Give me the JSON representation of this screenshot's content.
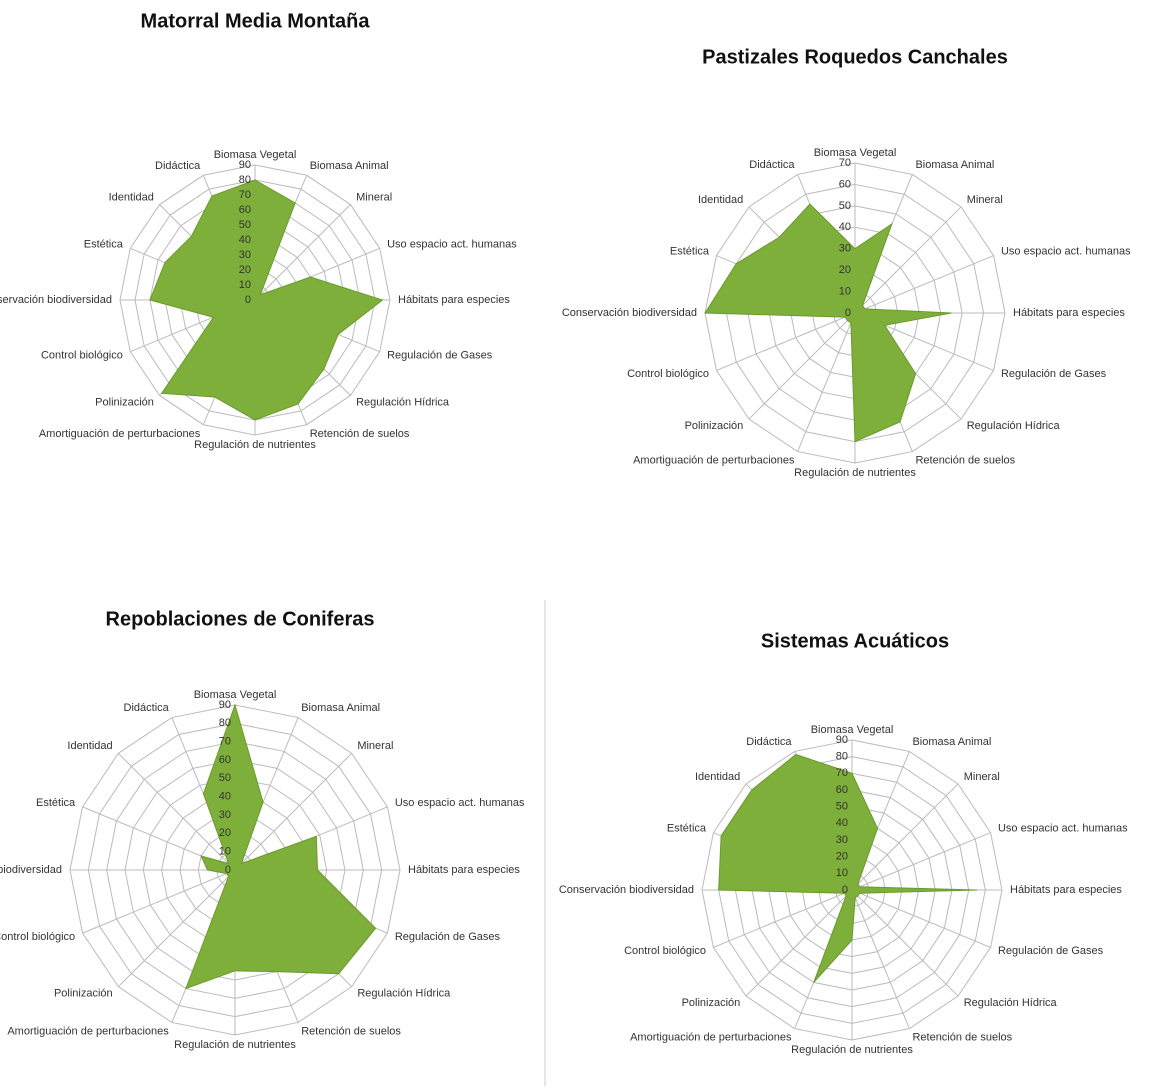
{
  "chart_data": [
    {
      "type": "radar",
      "title": "Matorral Media Montaña",
      "categories": [
        "Biomasa Vegetal",
        "Biomasa Animal",
        "Mineral",
        "Uso espacio act. humanas",
        "Hábitats para especies",
        "Regulación de Gases",
        "Regulación Hídrica",
        "Retención de suelos",
        "Regulación de nutrientes",
        "Amortiguación de perturbaciones",
        "Polinización",
        "Control biológico",
        "Conservación biodiversidad",
        "Estética",
        "Identidad",
        "Didáctica"
      ],
      "values": [
        80,
        70,
        5,
        40,
        85,
        60,
        65,
        75,
        80,
        70,
        88,
        30,
        70,
        65,
        60,
        75
      ],
      "color": "#7faf3b",
      "ylim": [
        0,
        90
      ],
      "yticks": [
        0,
        10,
        20,
        30,
        40,
        50,
        60,
        70,
        80,
        90
      ],
      "grid": true
    },
    {
      "type": "radar",
      "title": "Pastizales Roquedos Canchales",
      "categories": [
        "Biomasa Vegetal",
        "Biomasa Animal",
        "Mineral",
        "Uso espacio act. humanas",
        "Hábitats para especies",
        "Regulación de Gases",
        "Regulación Hídrica",
        "Retención de suelos",
        "Regulación de nutrientes",
        "Amortiguación de perturbaciones",
        "Polinización",
        "Control biológico",
        "Conservación biodiversidad",
        "Estética",
        "Identidad",
        "Didáctica"
      ],
      "values": [
        30,
        45,
        5,
        5,
        45,
        15,
        40,
        55,
        60,
        5,
        5,
        5,
        70,
        60,
        50,
        55
      ],
      "color": "#7faf3b",
      "ylim": [
        0,
        70
      ],
      "yticks": [
        0,
        10,
        20,
        30,
        40,
        50,
        60,
        70
      ],
      "grid": true
    },
    {
      "type": "radar",
      "title": "Repoblaciones de Coniferas",
      "categories": [
        "Biomasa Vegetal",
        "Biomasa Animal",
        "Mineral",
        "Uso espacio act. humanas",
        "Hábitats para especies",
        "Regulación de Gases",
        "Regulación Hídrica",
        "Retención de suelos",
        "Regulación de nutrientes",
        "Amortiguación de perturbaciones",
        "Polinización",
        "Control biológico",
        "Conservación biodiversidad",
        "Estética",
        "Identidad",
        "Didáctica"
      ],
      "values": [
        90,
        40,
        5,
        48,
        45,
        83,
        80,
        60,
        55,
        70,
        5,
        5,
        15,
        20,
        5,
        45
      ],
      "color": "#7faf3b",
      "ylim": [
        0,
        90
      ],
      "yticks": [
        0,
        10,
        20,
        30,
        40,
        50,
        60,
        70,
        80,
        90
      ],
      "grid": true
    },
    {
      "type": "radar",
      "title": "Sistemas Acuáticos",
      "categories": [
        "Biomasa Vegetal",
        "Biomasa Animal",
        "Mineral",
        "Uso espacio act. humanas",
        "Hábitats para especies",
        "Regulación de Gases",
        "Regulación Hídrica",
        "Retención de suelos",
        "Regulación de nutrientes",
        "Amortiguación de perturbaciones",
        "Polinización",
        "Control biológico",
        "Conservación biodiversidad",
        "Estética",
        "Identidad",
        "Didáctica"
      ],
      "values": [
        70,
        40,
        5,
        5,
        75,
        5,
        5,
        5,
        30,
        60,
        5,
        5,
        80,
        85,
        85,
        88
      ],
      "color": "#7faf3b",
      "ylim": [
        0,
        90
      ],
      "yticks": [
        0,
        10,
        20,
        30,
        40,
        50,
        60,
        70,
        80,
        90
      ],
      "grid": true
    }
  ]
}
